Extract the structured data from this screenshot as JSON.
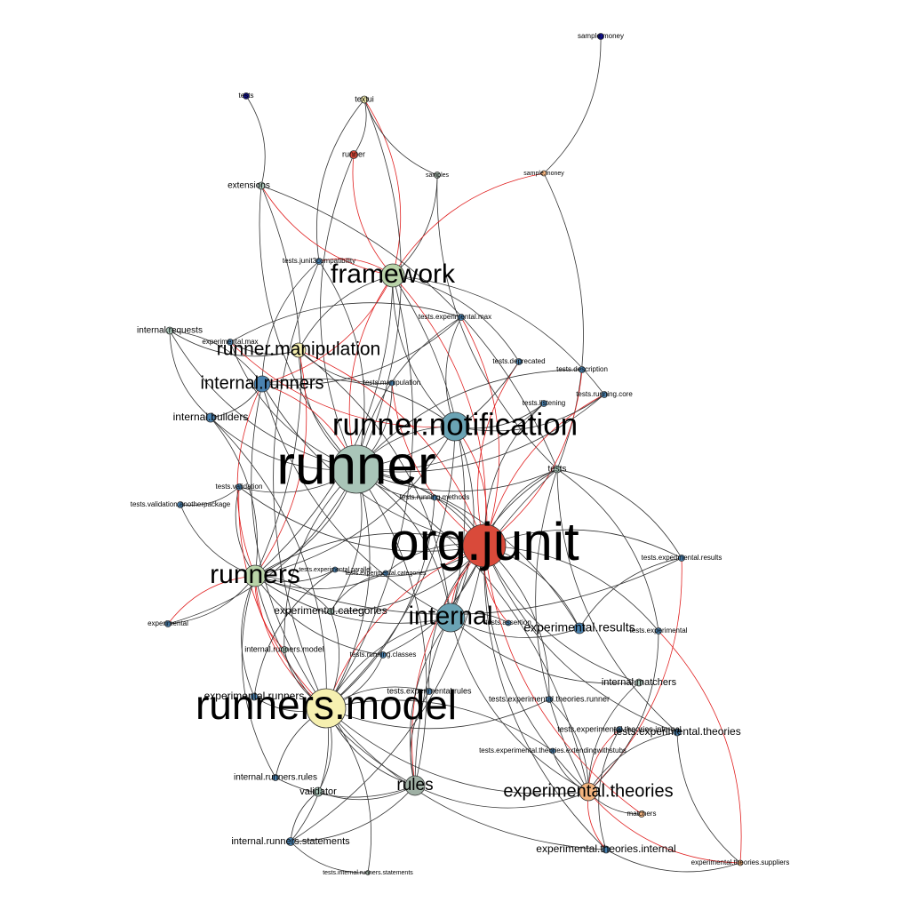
{
  "colors": {
    "edge_dark": "#333333",
    "edge_red": "#e02020",
    "blue": "#4a82b0",
    "navy": "#10108a",
    "red": "#d94a3a",
    "green": "#b9d3a8",
    "sage": "#a9c5b8",
    "teal": "#6aa3b4",
    "yellow": "#f6f0b0",
    "orange": "#f2b37e",
    "gray": "#9fb0a4"
  },
  "nodes": [
    {
      "id": "sample_money_a",
      "label": "sample.money",
      "color": "navy"
    },
    {
      "id": "tests_top",
      "label": "tests",
      "color": "navy"
    },
    {
      "id": "textui",
      "label": "textui",
      "color": "yellow"
    },
    {
      "id": "runner_small",
      "label": "runner",
      "color": "red"
    },
    {
      "id": "samples",
      "label": "samples",
      "color": "gray"
    },
    {
      "id": "sample_money_b",
      "label": "sample.money",
      "color": "orange"
    },
    {
      "id": "extensions",
      "label": "extensions",
      "color": "sage"
    },
    {
      "id": "tests_junit3",
      "label": "tests.junit3compatibility",
      "color": "blue"
    },
    {
      "id": "framework",
      "label": "framework",
      "color": "green"
    },
    {
      "id": "tests_exp_max",
      "label": "tests.experimental.max",
      "color": "blue"
    },
    {
      "id": "internal_requests",
      "label": "internal.requests",
      "color": "sage"
    },
    {
      "id": "exp_max",
      "label": "experimental.max",
      "color": "blue"
    },
    {
      "id": "runner_manipulation",
      "label": "runner.manipulation",
      "color": "yellow"
    },
    {
      "id": "tests_deprecated",
      "label": "tests.deprecated",
      "color": "blue"
    },
    {
      "id": "tests_description",
      "label": "tests.description",
      "color": "blue"
    },
    {
      "id": "internal_runners",
      "label": "internal.runners",
      "color": "blue"
    },
    {
      "id": "tests_manipulation",
      "label": "tests.manipulation",
      "color": "blue"
    },
    {
      "id": "tests_running_core",
      "label": "tests.running.core",
      "color": "blue"
    },
    {
      "id": "tests_listening",
      "label": "tests.listening",
      "color": "blue"
    },
    {
      "id": "internal_builders",
      "label": "internal.builders",
      "color": "blue"
    },
    {
      "id": "runner_notification",
      "label": "runner.notification",
      "color": "teal"
    },
    {
      "id": "runner",
      "label": "runner",
      "color": "sage"
    },
    {
      "id": "tests",
      "label": "tests",
      "color": "sage"
    },
    {
      "id": "tests_validation",
      "label": "tests.validation",
      "color": "blue"
    },
    {
      "id": "tests_running_methods",
      "label": "tests.running.methods",
      "color": "blue"
    },
    {
      "id": "tests_validation_another",
      "label": "tests.validation.anotherpackage",
      "color": "blue"
    },
    {
      "id": "org_junit",
      "label": "org.junit",
      "color": "red"
    },
    {
      "id": "tests_exp_results",
      "label": "tests.experimental.results",
      "color": "blue"
    },
    {
      "id": "runners",
      "label": "runners",
      "color": "green"
    },
    {
      "id": "tests_exp_parallel",
      "label": "tests.experimental.parallel",
      "color": "blue"
    },
    {
      "id": "tests_exp_categories",
      "label": "tests.experimental.categories",
      "color": "blue"
    },
    {
      "id": "exp_categories",
      "label": "experimental.categories",
      "color": "sage"
    },
    {
      "id": "internal",
      "label": "internal",
      "color": "teal"
    },
    {
      "id": "tests_assertion",
      "label": "tests.assertion",
      "color": "blue"
    },
    {
      "id": "experimental",
      "label": "experimental",
      "color": "blue"
    },
    {
      "id": "exp_results",
      "label": "experimental.results",
      "color": "blue"
    },
    {
      "id": "tests_experimental",
      "label": "tests.experimental",
      "color": "blue"
    },
    {
      "id": "internal_runners_model",
      "label": "internal.runners.model",
      "color": "sage"
    },
    {
      "id": "tests_running_classes",
      "label": "tests.running.classes",
      "color": "blue"
    },
    {
      "id": "internal_matchers",
      "label": "internal.matchers",
      "color": "sage"
    },
    {
      "id": "exp_runners",
      "label": "experimental.runners",
      "color": "blue"
    },
    {
      "id": "tests_exp_rules",
      "label": "tests.experimental.rules",
      "color": "blue"
    },
    {
      "id": "runners_model",
      "label": "runners.model",
      "color": "yellow"
    },
    {
      "id": "tests_exp_theories_runner",
      "label": "tests.experimental.theories.runner",
      "color": "blue"
    },
    {
      "id": "tests_exp_theories_internal",
      "label": "tests.experimental.theories.internal",
      "color": "blue"
    },
    {
      "id": "tests_exp_theories",
      "label": "tests.experimental.theories",
      "color": "blue"
    },
    {
      "id": "tests_exp_theories_ews",
      "label": "tests.experimental.theories.extendingwithstubs",
      "color": "blue"
    },
    {
      "id": "internal_runners_rules",
      "label": "internal.runners.rules",
      "color": "blue"
    },
    {
      "id": "rules",
      "label": "rules",
      "color": "gray"
    },
    {
      "id": "validator",
      "label": "validator",
      "color": "sage"
    },
    {
      "id": "exp_theories",
      "label": "experimental.theories",
      "color": "orange"
    },
    {
      "id": "matchers",
      "label": "matchers",
      "color": "orange"
    },
    {
      "id": "internal_runners_statements",
      "label": "internal.runners.statements",
      "color": "blue"
    },
    {
      "id": "exp_theories_internal",
      "label": "experimental.theories.internal",
      "color": "blue"
    },
    {
      "id": "exp_theories_suppliers",
      "label": "experimental.theories.suppliers",
      "color": "orange"
    },
    {
      "id": "tests_internal_runners_statements",
      "label": "tests.internal.runners.statements",
      "color": "gray"
    }
  ],
  "edges": [
    [
      "sample_money_a",
      "sample_money_b",
      "dark"
    ],
    [
      "tests_top",
      "extensions",
      "dark"
    ],
    [
      "textui",
      "runner_small",
      "dark"
    ],
    [
      "textui",
      "framework",
      "red"
    ],
    [
      "textui",
      "samples",
      "dark"
    ],
    [
      "textui",
      "tests_junit3",
      "dark"
    ],
    [
      "textui",
      "runner",
      "dark"
    ],
    [
      "runner_small",
      "framework",
      "red"
    ],
    [
      "runner_small",
      "runner",
      "dark"
    ],
    [
      "samples",
      "framework",
      "dark"
    ],
    [
      "samples",
      "tests",
      "dark"
    ],
    [
      "sample_money_b",
      "framework",
      "red"
    ],
    [
      "sample_money_b",
      "tests",
      "dark"
    ],
    [
      "extensions",
      "framework",
      "red"
    ],
    [
      "extensions",
      "runner",
      "dark"
    ],
    [
      "extensions",
      "runners",
      "dark"
    ],
    [
      "extensions",
      "tests",
      "dark"
    ],
    [
      "tests_junit3",
      "framework",
      "red"
    ],
    [
      "tests_junit3",
      "runner",
      "dark"
    ],
    [
      "tests_junit3",
      "runners_model",
      "dark"
    ],
    [
      "tests_junit3",
      "internal_runners",
      "dark"
    ],
    [
      "framework",
      "runner",
      "red"
    ],
    [
      "framework",
      "org_junit",
      "red"
    ],
    [
      "framework",
      "runner_notification",
      "dark"
    ],
    [
      "framework",
      "internal_runners",
      "red"
    ],
    [
      "framework",
      "runners",
      "dark"
    ],
    [
      "framework",
      "internal",
      "dark"
    ],
    [
      "framework",
      "runner_manipulation",
      "dark"
    ],
    [
      "framework",
      "tests_deprecated",
      "dark"
    ],
    [
      "framework",
      "tests_running_core",
      "dark"
    ],
    [
      "framework",
      "runners_model",
      "dark"
    ],
    [
      "tests_exp_max",
      "runner",
      "dark"
    ],
    [
      "tests_exp_max",
      "org_junit",
      "red"
    ],
    [
      "tests_exp_max",
      "runner_notification",
      "dark"
    ],
    [
      "tests_exp_max",
      "exp_max",
      "dark"
    ],
    [
      "tests_exp_max",
      "internal_runners",
      "dark"
    ],
    [
      "internal_requests",
      "runner",
      "dark"
    ],
    [
      "internal_requests",
      "internal_runners",
      "dark"
    ],
    [
      "internal_requests",
      "runner_manipulation",
      "dark"
    ],
    [
      "internal_requests",
      "internal_builders",
      "dark"
    ],
    [
      "exp_max",
      "runner",
      "dark"
    ],
    [
      "exp_max",
      "runner_notification",
      "red"
    ],
    [
      "exp_max",
      "runner_manipulation",
      "dark"
    ],
    [
      "runner_manipulation",
      "runner",
      "dark"
    ],
    [
      "runner_manipulation",
      "runners",
      "red"
    ],
    [
      "runner_manipulation",
      "internal",
      "dark"
    ],
    [
      "runner_manipulation",
      "org_junit",
      "red"
    ],
    [
      "tests_deprecated",
      "org_junit",
      "red"
    ],
    [
      "tests_deprecated",
      "runner",
      "dark"
    ],
    [
      "tests_description",
      "org_junit",
      "red"
    ],
    [
      "tests_description",
      "runner",
      "dark"
    ],
    [
      "tests_running_core",
      "org_junit",
      "red"
    ],
    [
      "tests_running_core",
      "runner",
      "dark"
    ],
    [
      "tests_running_core",
      "runner_notification",
      "dark"
    ],
    [
      "tests_listening",
      "org_junit",
      "dark"
    ],
    [
      "tests_listening",
      "runner",
      "dark"
    ],
    [
      "tests_listening",
      "runner_notification",
      "dark"
    ],
    [
      "tests_manipulation",
      "org_junit",
      "red"
    ],
    [
      "tests_manipulation",
      "runner",
      "dark"
    ],
    [
      "tests_manipulation",
      "runner_manipulation",
      "dark"
    ],
    [
      "internal_runners",
      "runner",
      "red"
    ],
    [
      "internal_runners",
      "runners",
      "red"
    ],
    [
      "internal_runners",
      "runners_model",
      "dark"
    ],
    [
      "internal_runners",
      "internal",
      "dark"
    ],
    [
      "internal_runners",
      "runner_notification",
      "dark"
    ],
    [
      "internal_runners",
      "org_junit",
      "dark"
    ],
    [
      "internal_runners",
      "internal_builders",
      "dark"
    ],
    [
      "internal_builders",
      "runner",
      "dark"
    ],
    [
      "internal_builders",
      "runners",
      "dark"
    ],
    [
      "internal_builders",
      "runners_model",
      "dark"
    ],
    [
      "runner_notification",
      "runner",
      "dark"
    ],
    [
      "runner_notification",
      "org_junit",
      "red"
    ],
    [
      "runner_notification",
      "runners",
      "dark"
    ],
    [
      "runner_notification",
      "internal",
      "dark"
    ],
    [
      "runner_notification",
      "runners_model",
      "dark"
    ],
    [
      "runner",
      "org_junit",
      "dark"
    ],
    [
      "runner",
      "runners",
      "dark"
    ],
    [
      "runner",
      "runners_model",
      "dark"
    ],
    [
      "runner",
      "internal",
      "dark"
    ],
    [
      "runner",
      "rules",
      "dark"
    ],
    [
      "runner",
      "exp_theories",
      "dark"
    ],
    [
      "runner",
      "tests_validation",
      "dark"
    ],
    [
      "runner",
      "tests_running_methods",
      "dark"
    ],
    [
      "tests",
      "org_junit",
      "dark"
    ],
    [
      "tests",
      "runner",
      "dark"
    ],
    [
      "tests",
      "tests_exp_results",
      "dark"
    ],
    [
      "tests",
      "tests_experimental",
      "dark"
    ],
    [
      "tests",
      "exp_theories",
      "dark"
    ],
    [
      "tests",
      "internal",
      "dark"
    ],
    [
      "tests",
      "rules",
      "dark"
    ],
    [
      "tests",
      "tests_exp_theories",
      "dark"
    ],
    [
      "tests_validation",
      "runners",
      "dark"
    ],
    [
      "tests_validation",
      "runners_model",
      "red"
    ],
    [
      "tests_validation",
      "org_junit",
      "dark"
    ],
    [
      "tests_validation_another",
      "tests_validation",
      "dark"
    ],
    [
      "tests_validation_another",
      "runners",
      "dark"
    ],
    [
      "tests_running_methods",
      "org_junit",
      "dark"
    ],
    [
      "tests_running_methods",
      "runners_model",
      "dark"
    ],
    [
      "org_junit",
      "runners",
      "dark"
    ],
    [
      "org_junit",
      "internal",
      "red"
    ],
    [
      "org_junit",
      "runners_model",
      "red"
    ],
    [
      "org_junit",
      "rules",
      "red"
    ],
    [
      "org_junit",
      "exp_theories",
      "dark"
    ],
    [
      "org_junit",
      "exp_results",
      "dark"
    ],
    [
      "org_junit",
      "tests_exp_results",
      "dark"
    ],
    [
      "org_junit",
      "internal_matchers",
      "dark"
    ],
    [
      "org_junit",
      "tests_experimental",
      "dark"
    ],
    [
      "org_junit",
      "tests_exp_theories",
      "dark"
    ],
    [
      "org_junit",
      "tests_exp_theories_runner",
      "dark"
    ],
    [
      "org_junit",
      "tests_exp_rules",
      "dark"
    ],
    [
      "org_junit",
      "tests_running_classes",
      "dark"
    ],
    [
      "org_junit",
      "internal_runners_statements",
      "dark"
    ],
    [
      "org_junit",
      "exp_theories_internal",
      "dark"
    ],
    [
      "org_junit",
      "matchers",
      "red"
    ],
    [
      "org_junit",
      "exp_categories",
      "dark"
    ],
    [
      "tests_exp_results",
      "exp_results",
      "dark"
    ],
    [
      "tests_exp_results",
      "exp_theories",
      "red"
    ],
    [
      "tests_exp_results",
      "runners",
      "dark"
    ],
    [
      "runners",
      "runners_model",
      "red"
    ],
    [
      "runners",
      "internal",
      "dark"
    ],
    [
      "runners",
      "exp_categories",
      "dark"
    ],
    [
      "runners",
      "experimental",
      "dark"
    ],
    [
      "runners",
      "internal_runners_model",
      "red"
    ],
    [
      "runners",
      "rules",
      "dark"
    ],
    [
      "runners",
      "exp_runners",
      "dark"
    ],
    [
      "runners",
      "internal_runners_rules",
      "dark"
    ],
    [
      "runners",
      "tests_exp_parallel",
      "dark"
    ],
    [
      "tests_exp_parallel",
      "exp_runners",
      "dark"
    ],
    [
      "tests_exp_parallel",
      "org_junit",
      "dark"
    ],
    [
      "tests_exp_categories",
      "exp_categories",
      "dark"
    ],
    [
      "tests_exp_categories",
      "org_junit",
      "dark"
    ],
    [
      "tests_exp_categories",
      "runners",
      "dark"
    ],
    [
      "exp_categories",
      "runner",
      "dark"
    ],
    [
      "exp_categories",
      "runners_model",
      "dark"
    ],
    [
      "internal",
      "runners_model",
      "dark"
    ],
    [
      "internal",
      "rules",
      "dark"
    ],
    [
      "internal",
      "exp_theories",
      "dark"
    ],
    [
      "internal",
      "internal_matchers",
      "dark"
    ],
    [
      "internal",
      "tests_assertion",
      "dark"
    ],
    [
      "tests_assertion",
      "org_junit",
      "red"
    ],
    [
      "experimental",
      "runners",
      "red"
    ],
    [
      "experimental",
      "runner",
      "dark"
    ],
    [
      "exp_results",
      "runner",
      "dark"
    ],
    [
      "exp_results",
      "internal",
      "dark"
    ],
    [
      "tests_experimental",
      "exp_theories",
      "dark"
    ],
    [
      "tests_experimental",
      "exp_theories_suppliers",
      "red"
    ],
    [
      "internal_runners_model",
      "runners_model",
      "dark"
    ],
    [
      "internal_runners_model",
      "runner",
      "dark"
    ],
    [
      "tests_running_classes",
      "runners_model",
      "dark"
    ],
    [
      "tests_running_classes",
      "runners",
      "dark"
    ],
    [
      "internal_matchers",
      "exp_theories",
      "dark"
    ],
    [
      "exp_runners",
      "runners_model",
      "dark"
    ],
    [
      "tests_exp_rules",
      "rules",
      "dark"
    ],
    [
      "tests_exp_rules",
      "runners_model",
      "dark"
    ],
    [
      "runners_model",
      "rules",
      "dark"
    ],
    [
      "runners_model",
      "validator",
      "dark"
    ],
    [
      "runners_model",
      "internal_runners_rules",
      "dark"
    ],
    [
      "runners_model",
      "internal_runners_statements",
      "dark"
    ],
    [
      "runners_model",
      "exp_theories",
      "dark"
    ],
    [
      "runners_model",
      "exp_theories_internal",
      "dark"
    ],
    [
      "runners_model",
      "tests_internal_runners_statements",
      "dark"
    ],
    [
      "tests_exp_theories_runner",
      "exp_theories",
      "dark"
    ],
    [
      "tests_exp_theories_runner",
      "runners_model",
      "dark"
    ],
    [
      "tests_exp_theories_internal",
      "exp_theories_internal",
      "dark"
    ],
    [
      "tests_exp_theories_internal",
      "exp_theories",
      "red"
    ],
    [
      "tests_exp_theories",
      "exp_theories",
      "dark"
    ],
    [
      "tests_exp_theories",
      "exp_theories_suppliers",
      "dark"
    ],
    [
      "tests_exp_theories_ews",
      "exp_theories",
      "dark"
    ],
    [
      "tests_exp_theories_ews",
      "runners_model",
      "dark"
    ],
    [
      "internal_runners_rules",
      "rules",
      "dark"
    ],
    [
      "rules",
      "exp_theories",
      "dark"
    ],
    [
      "rules",
      "validator",
      "dark"
    ],
    [
      "rules",
      "internal_runners_statements",
      "dark"
    ],
    [
      "validator",
      "internal_runners_statements",
      "dark"
    ],
    [
      "exp_theories",
      "matchers",
      "dark"
    ],
    [
      "exp_theories",
      "exp_theories_internal",
      "red"
    ],
    [
      "exp_theories",
      "exp_theories_suppliers",
      "red"
    ],
    [
      "exp_theories_internal",
      "exp_theories_suppliers",
      "dark"
    ],
    [
      "internal_runners_statements",
      "tests_internal_runners_statements",
      "dark"
    ]
  ]
}
